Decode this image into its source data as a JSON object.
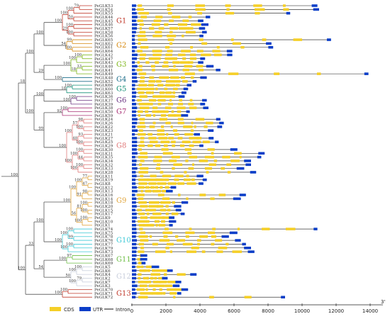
{
  "colors": {
    "cds": "#F5CF27",
    "utr": "#0B3EC8",
    "intron": "#111111",
    "tree": "#555555"
  },
  "groups": [
    {
      "name": "G1",
      "color": "#C0392B"
    },
    {
      "name": "G2",
      "color": "#D68910"
    },
    {
      "name": "G3",
      "color": "#7CB518"
    },
    {
      "name": "G4",
      "color": "#1F6F8B"
    },
    {
      "name": "G5",
      "color": "#148F77"
    },
    {
      "name": "G6",
      "color": "#6C3483"
    },
    {
      "name": "G7",
      "color": "#A93276"
    },
    {
      "name": "G8",
      "color": "#E07A7A"
    },
    {
      "name": "G9",
      "color": "#E0A43A"
    },
    {
      "name": "G10",
      "color": "#3EC9D6"
    },
    {
      "name": "G11",
      "color": "#6DBE45"
    },
    {
      "name": "G12",
      "color": "#C8CEDC"
    },
    {
      "name": "G13",
      "color": "#C0392B"
    }
  ],
  "genes": [
    {
      "name": "PeGLK53",
      "group": 0,
      "len": 10900
    },
    {
      "name": "PeGLK54",
      "group": 0,
      "len": 11000
    },
    {
      "name": "PeGLK55",
      "group": 0,
      "len": 9300
    },
    {
      "name": "PeGLK44",
      "group": 0,
      "len": 4600
    },
    {
      "name": "PeGLK45",
      "group": 0,
      "len": 4200
    },
    {
      "name": "PeGLK46",
      "group": 0,
      "len": 4500
    },
    {
      "name": "PeGLK57",
      "group": 0,
      "len": 4300
    },
    {
      "name": "PeGLK58",
      "group": 0,
      "len": 4400
    },
    {
      "name": "PeGLK56",
      "group": 0,
      "len": 4200
    },
    {
      "name": "PeGLK65",
      "group": 1,
      "len": 11700
    },
    {
      "name": "PeGLK62",
      "group": 1,
      "len": 8200
    },
    {
      "name": "PeGLK61",
      "group": 1,
      "len": 8300
    },
    {
      "name": "PeGLK64",
      "group": 1,
      "len": 5900
    },
    {
      "name": "PeGLK42",
      "group": 2,
      "len": 5900
    },
    {
      "name": "PeGLK47",
      "group": 2,
      "len": 4300
    },
    {
      "name": "PeGLK43",
      "group": 2,
      "len": 4200
    },
    {
      "name": "PeGLK40",
      "group": 2,
      "len": 4800
    },
    {
      "name": "PeGLK41",
      "group": 2,
      "len": 5200
    },
    {
      "name": "PeGLK49",
      "group": 2,
      "len": 13900
    },
    {
      "name": "PeGLK48",
      "group": 3,
      "len": 4400
    },
    {
      "name": "PeGLK52",
      "group": 3,
      "len": 3800
    },
    {
      "name": "PeGLK66",
      "group": 4,
      "len": 3500
    },
    {
      "name": "PeGLK60",
      "group": 4,
      "len": 3300
    },
    {
      "name": "PeGLK63",
      "group": 4,
      "len": 3200
    },
    {
      "name": "PeGLK36",
      "group": 5,
      "len": 3100
    },
    {
      "name": "PeGLK37",
      "group": 5,
      "len": 4400
    },
    {
      "name": "PeGLK39",
      "group": 5,
      "len": 4300
    },
    {
      "name": "PeGLK38",
      "group": 6,
      "len": 4500
    },
    {
      "name": "PeGLK50",
      "group": 6,
      "len": 3400
    },
    {
      "name": "PeGLK59",
      "group": 6,
      "len": 3300
    },
    {
      "name": "PeGLK24",
      "group": 7,
      "len": 5200
    },
    {
      "name": "PeGLK26",
      "group": 7,
      "len": 5400
    },
    {
      "name": "PeGLK22",
      "group": 7,
      "len": 5300
    },
    {
      "name": "PeGLK23",
      "group": 7,
      "len": 4800
    },
    {
      "name": "PeGLK21",
      "group": 7,
      "len": 4000
    },
    {
      "name": "PeGLK27",
      "group": 7,
      "len": 4800
    },
    {
      "name": "PeGLK25",
      "group": 7,
      "len": 5100
    },
    {
      "name": "PeGLK29",
      "group": 7,
      "len": 4200
    },
    {
      "name": "PeGLK30",
      "group": 7,
      "len": 6200
    },
    {
      "name": "PeGLK31",
      "group": 7,
      "len": 7800
    },
    {
      "name": "PeGLK35",
      "group": 7,
      "len": 7600
    },
    {
      "name": "PeGLK34",
      "group": 7,
      "len": 7000
    },
    {
      "name": "PeGLK32",
      "group": 7,
      "len": 7000
    },
    {
      "name": "PeGLK33",
      "group": 7,
      "len": 6600
    },
    {
      "name": "PeGLK28",
      "group": 7,
      "len": 7300
    },
    {
      "name": "PeGLK11",
      "group": 8,
      "len": 4200
    },
    {
      "name": "PeGLK19",
      "group": 8,
      "len": 4400
    },
    {
      "name": "PeGLK8",
      "group": 8,
      "len": 4200
    },
    {
      "name": "PeGLK12",
      "group": 8,
      "len": 2600
    },
    {
      "name": "PeGLK13",
      "group": 8,
      "len": 2400
    },
    {
      "name": "PeGLK16",
      "group": 8,
      "len": 6700
    },
    {
      "name": "PeGLK14",
      "group": 8,
      "len": 6400
    },
    {
      "name": "PeGLK18",
      "group": 8,
      "len": 3300
    },
    {
      "name": "PeGLK20",
      "group": 8,
      "len": 2900
    },
    {
      "name": "PeGLK15",
      "group": 8,
      "len": 2900
    },
    {
      "name": "PeGLK17",
      "group": 8,
      "len": 3100
    },
    {
      "name": "PeGLK9",
      "group": 8,
      "len": 2500
    },
    {
      "name": "PeGLK10",
      "group": 8,
      "len": 2600
    },
    {
      "name": "PeGLK1",
      "group": 8,
      "len": 2400
    },
    {
      "name": "PeGLK74",
      "group": 9,
      "len": 10900
    },
    {
      "name": "PeGLK75",
      "group": 9,
      "len": 6200
    },
    {
      "name": "PeGLK78",
      "group": 9,
      "len": 5700
    },
    {
      "name": "PeGLK76",
      "group": 9,
      "len": 6400
    },
    {
      "name": "PeGLK77",
      "group": 9,
      "len": 6700
    },
    {
      "name": "PeGLK79",
      "group": 9,
      "len": 7000
    },
    {
      "name": "PeGLK73",
      "group": 9,
      "len": 7200
    },
    {
      "name": "PeGLK67",
      "group": 10,
      "len": 900
    },
    {
      "name": "PeGLK68",
      "group": 10,
      "len": 900
    },
    {
      "name": "PeGLK69",
      "group": 10,
      "len": 800
    },
    {
      "name": "PeGLK5",
      "group": 11,
      "len": 1600
    },
    {
      "name": "PeGLK6",
      "group": 11,
      "len": 2400
    },
    {
      "name": "PeGLK4",
      "group": 11,
      "len": 3800
    },
    {
      "name": "PeGLK2",
      "group": 11,
      "len": 2100
    },
    {
      "name": "PeGLK7",
      "group": 11,
      "len": 2900
    },
    {
      "name": "PeGLK3",
      "group": 11,
      "len": 2800
    },
    {
      "name": "PeGLK70",
      "group": 12,
      "len": 3300
    },
    {
      "name": "PeGLK71",
      "group": 12,
      "len": 2900
    },
    {
      "name": "PeGLK72",
      "group": 12,
      "len": 9000
    }
  ],
  "support_values": [
    "79",
    "100",
    "50",
    "100",
    "100",
    "100",
    "29",
    "100",
    "99",
    "100",
    "54",
    "100",
    "100",
    "33",
    "18",
    "100",
    "100",
    "100",
    "18",
    "100",
    "100",
    "100",
    "92",
    "98",
    "100",
    "57",
    "93",
    "100",
    "48",
    "100",
    "100",
    "44",
    "100",
    "100",
    "100",
    "100",
    "100",
    "77",
    "47",
    "100",
    "98",
    "91",
    "100",
    "100",
    "100",
    "81",
    "100",
    "100",
    "56",
    "100",
    "100",
    "99",
    "100",
    "100",
    "100",
    "100",
    "97",
    "100",
    "100",
    "100"
  ],
  "axis": {
    "ticks": [
      "0",
      "2000",
      "4000",
      "6000",
      "8000",
      "10000",
      "12000",
      "14000"
    ],
    "end_label": "3'"
  },
  "legend": {
    "cds": "CDS",
    "utr": "UTR",
    "intron": "Intron"
  }
}
